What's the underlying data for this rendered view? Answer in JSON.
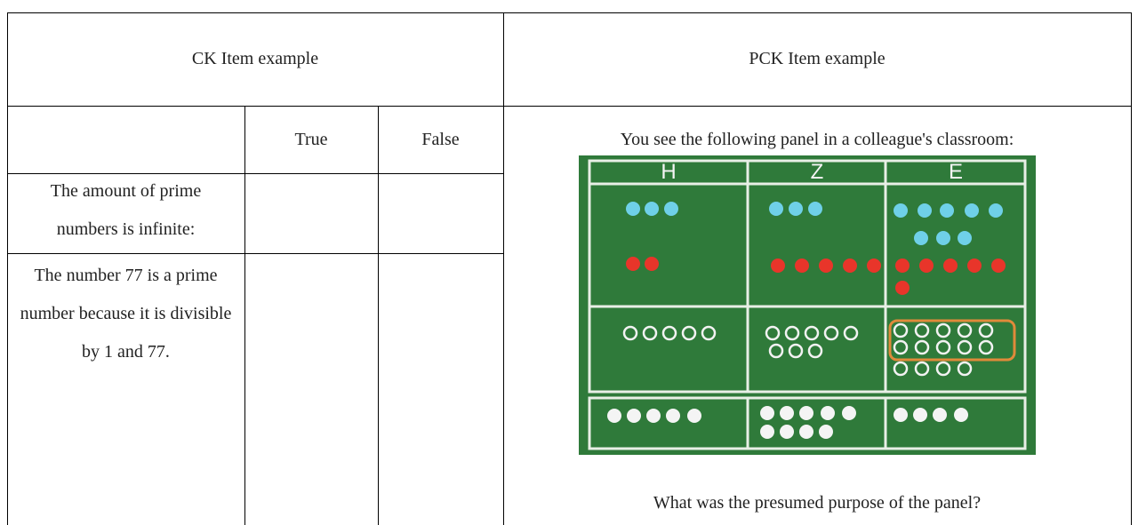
{
  "header": {
    "ck": "CK Item example",
    "pck": "PCK Item example"
  },
  "ck_table": {
    "columns": [
      "True",
      "False"
    ],
    "rows": [
      "The amount of prime numbers is infinite:",
      "The number 77 is a prime number because it is divisible by 1 and 77."
    ]
  },
  "pck": {
    "prompt": "You see the following panel in a colleague's classroom:",
    "panel": {
      "columns": [
        "H",
        "Z",
        "E"
      ]
    },
    "question": "What was the presumed purpose of the panel?"
  }
}
